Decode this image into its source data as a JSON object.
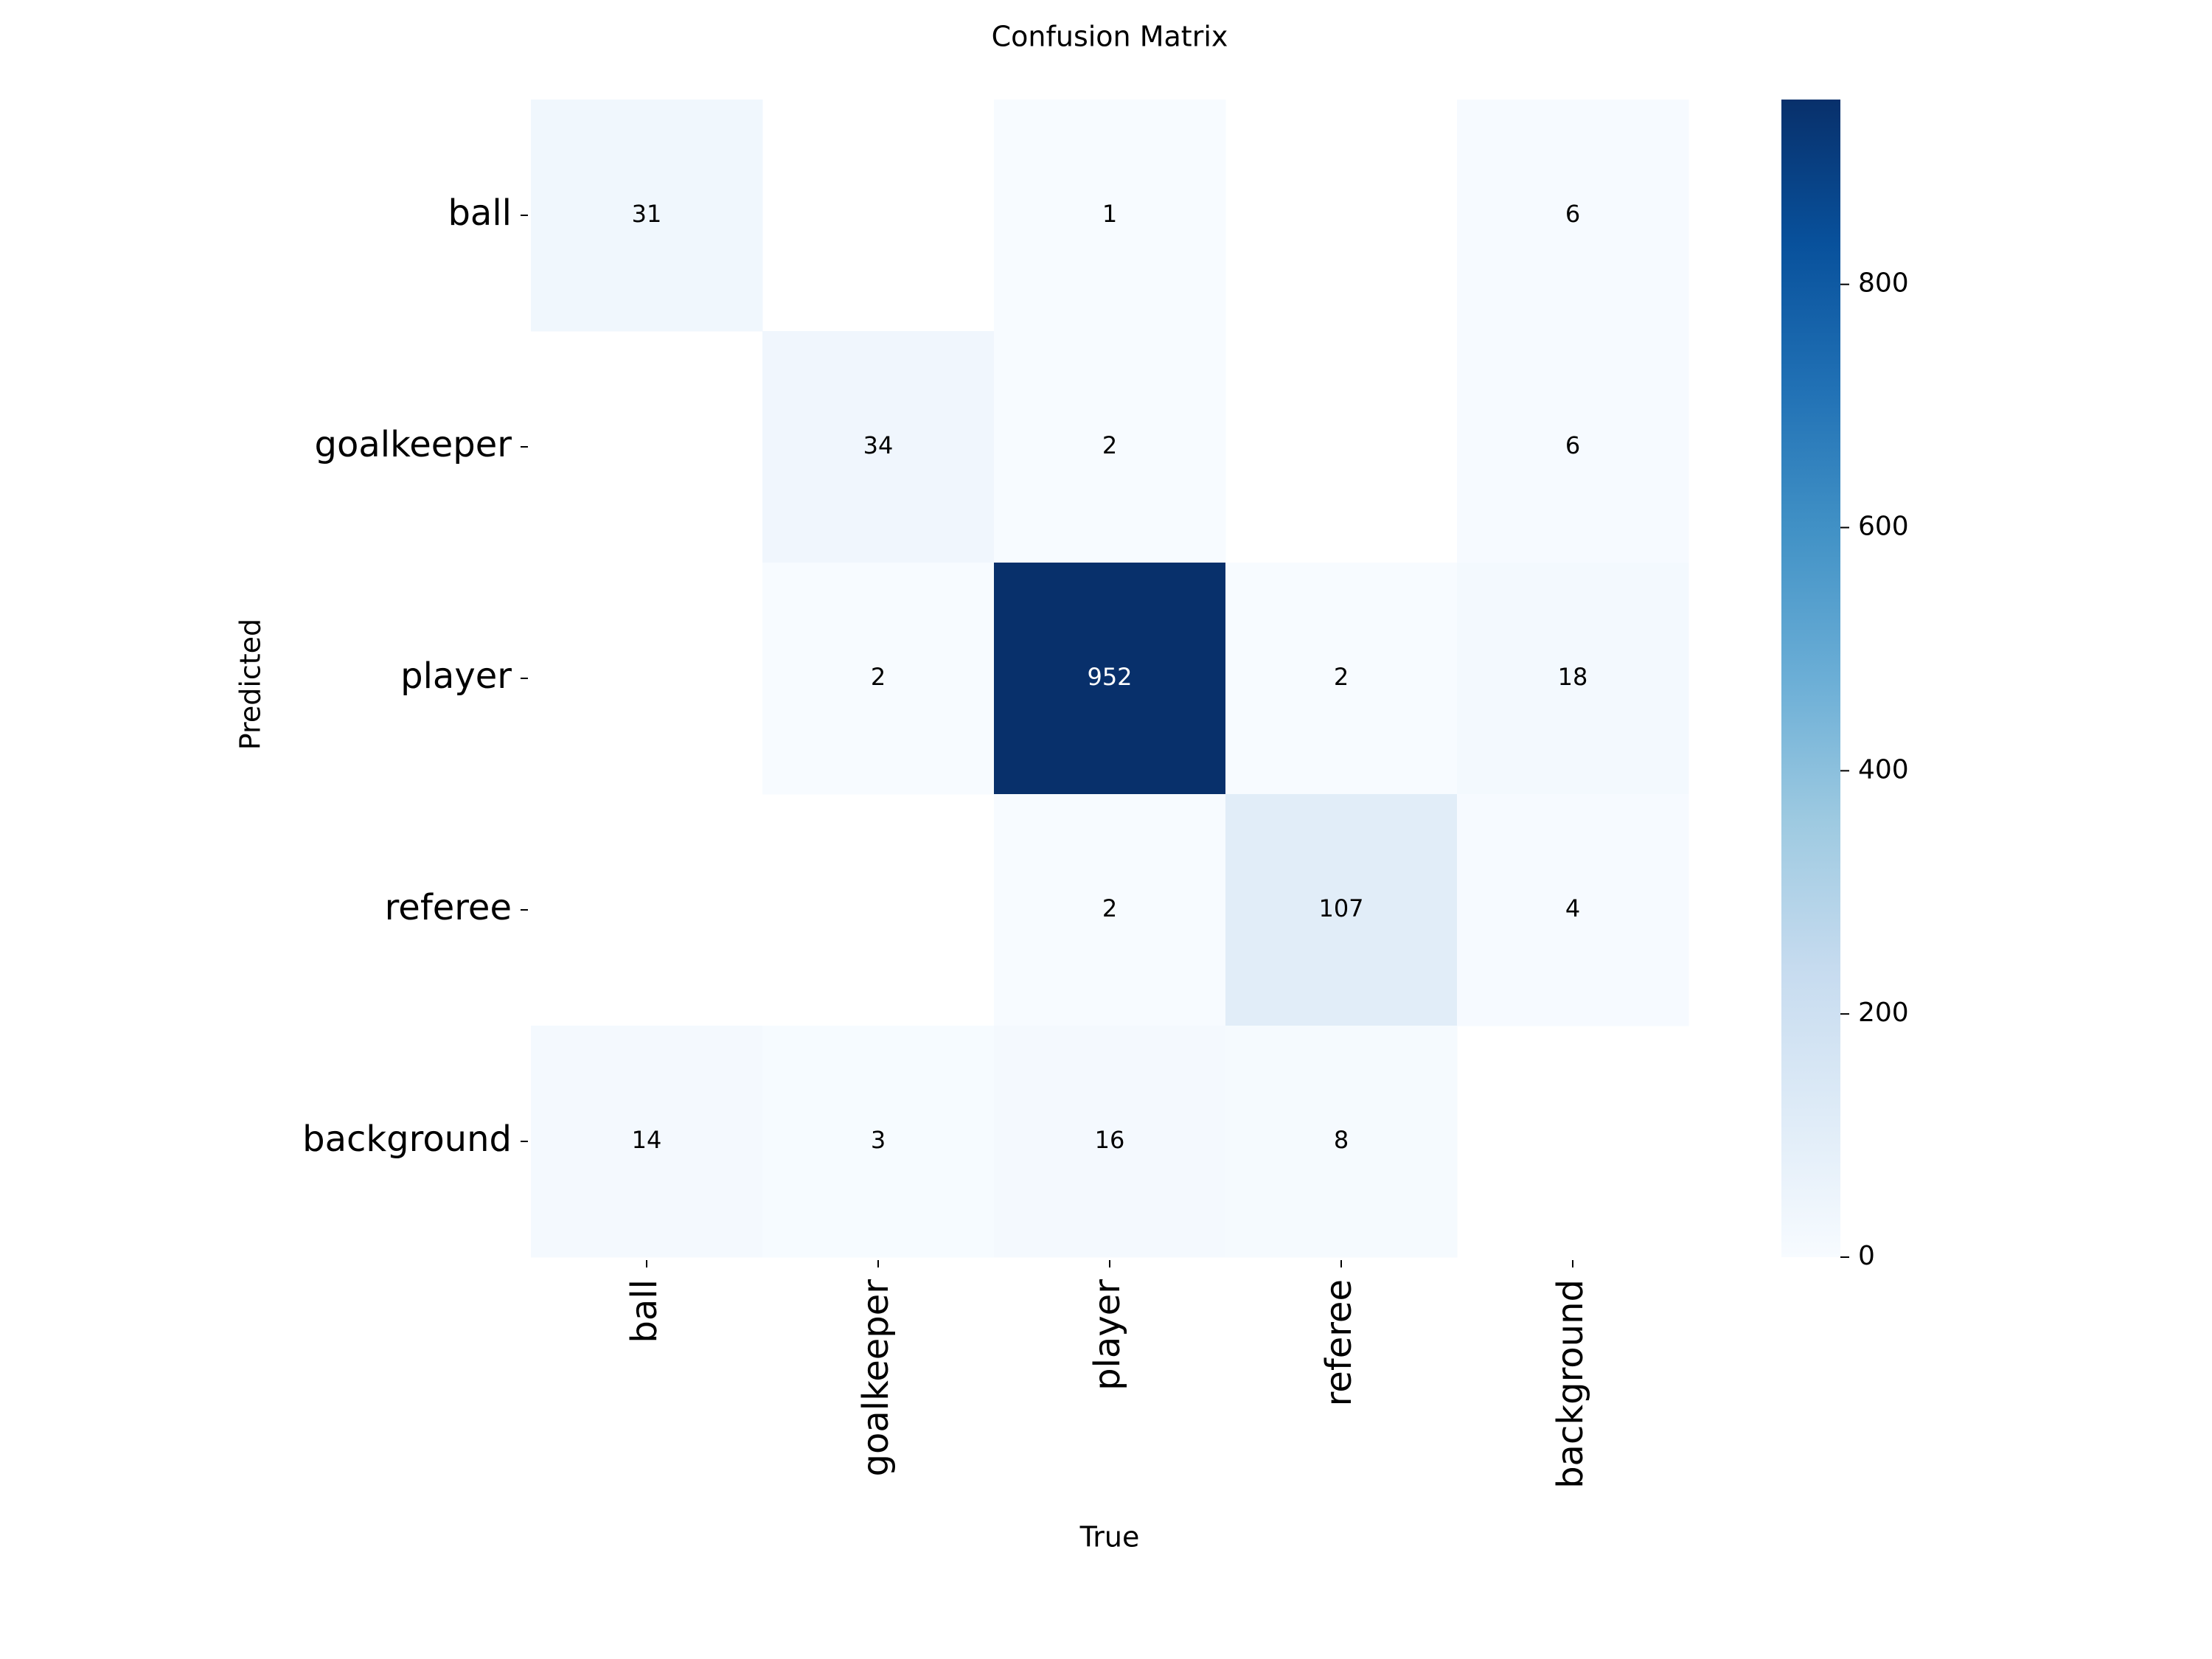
{
  "chart_data": {
    "type": "heatmap",
    "title": "Confusion Matrix",
    "xlabel": "True",
    "ylabel": "Predicted",
    "x_categories": [
      "ball",
      "goalkeeper",
      "player",
      "referee",
      "background"
    ],
    "y_categories": [
      "ball",
      "goalkeeper",
      "player",
      "referee",
      "background"
    ],
    "values": [
      [
        31,
        null,
        1,
        null,
        6
      ],
      [
        null,
        34,
        2,
        null,
        6
      ],
      [
        null,
        2,
        952,
        2,
        18
      ],
      [
        null,
        null,
        2,
        107,
        4
      ],
      [
        14,
        3,
        16,
        8,
        null
      ]
    ],
    "colormap": "Blues",
    "color_range": [
      0,
      952
    ],
    "colorbar_ticks": [
      0,
      200,
      400,
      600,
      800
    ],
    "colorbar_tick_labels": [
      "0",
      "200",
      "400",
      "600",
      "800"
    ],
    "colors": {
      "low": "#f7fbff",
      "high": "#08306b",
      "text_dark": "#000000",
      "text_light": "#ffffff"
    }
  }
}
